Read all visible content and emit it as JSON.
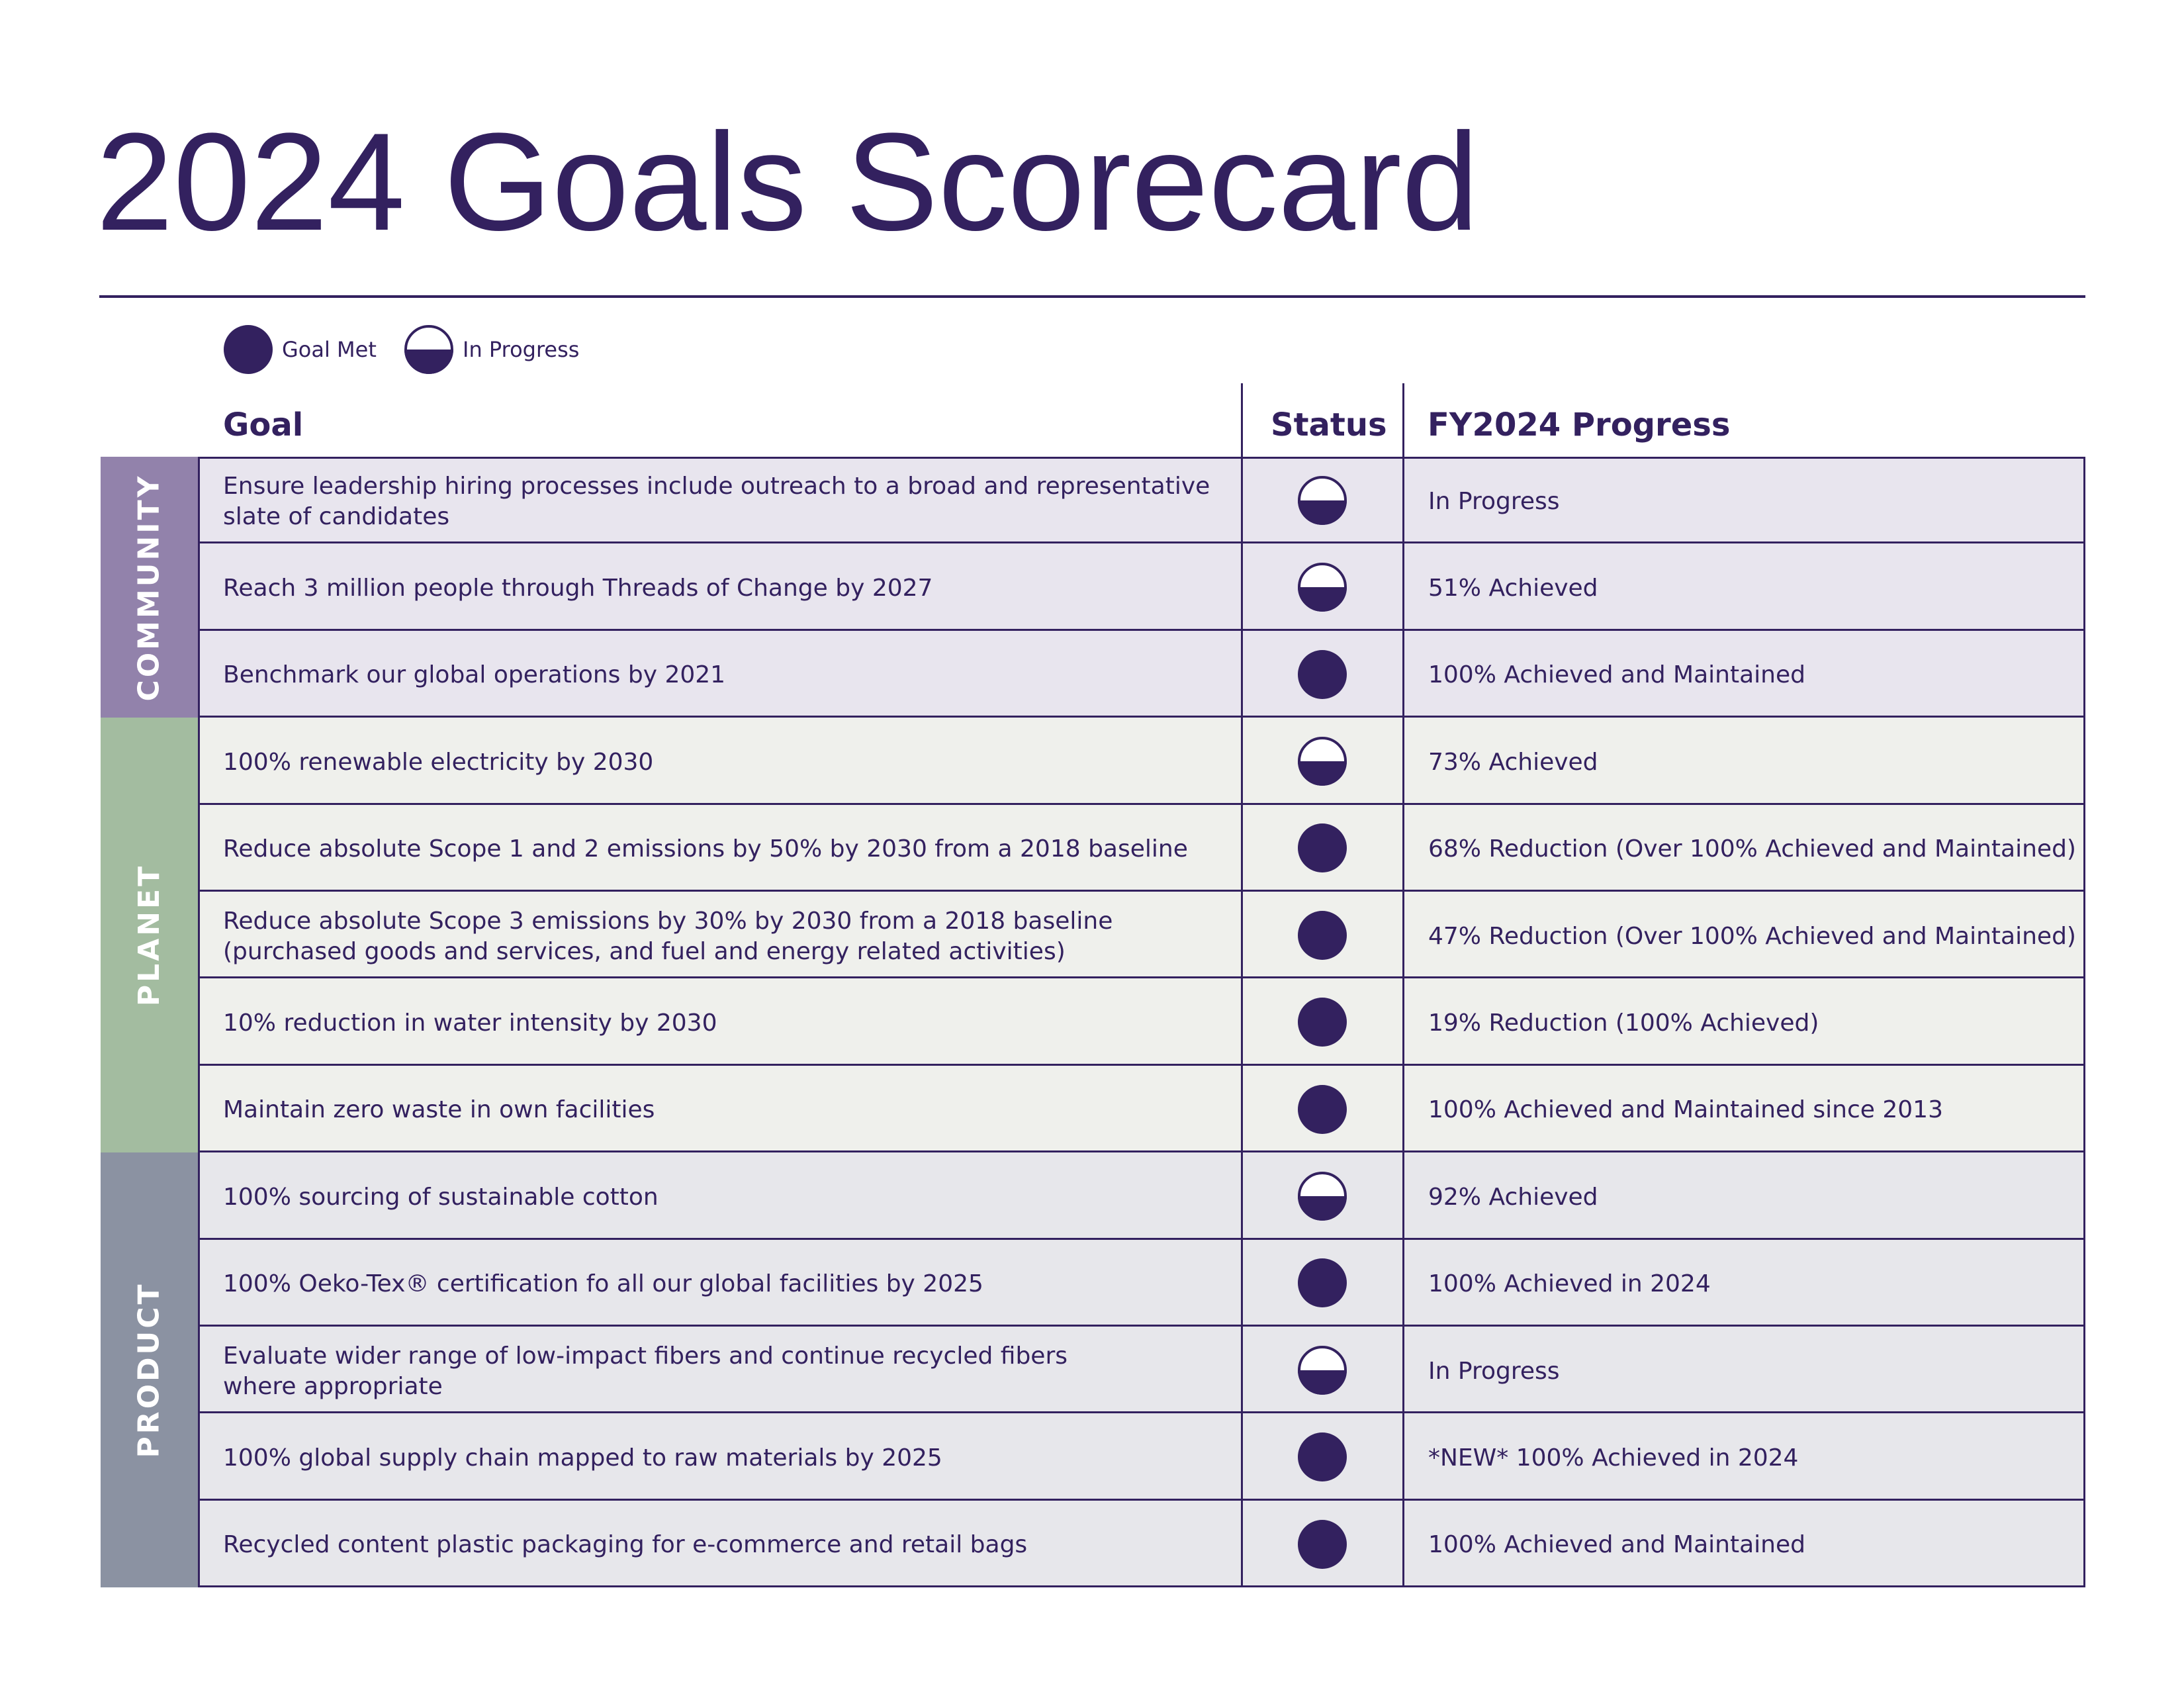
{
  "title": "2024 Goals Scorecard",
  "legend": [
    {
      "label": "Goal Met",
      "icon": "full"
    },
    {
      "label": "In Progress",
      "icon": "half"
    }
  ],
  "table": {
    "columns": [
      "Goal",
      "Status",
      "FY2024 Progress"
    ],
    "groups": [
      {
        "name": "COMMUNITY",
        "color": "#9282ab",
        "row_color": "#e8e5ee",
        "rows": [
          {
            "goal": "Ensure leadership hiring processes include outreach to a broad and representative\nslate of candidates",
            "status": "In Progress",
            "progress": "In Progress"
          },
          {
            "goal": "Reach 3 million people through Threads of Change by 2027",
            "status": "In Progress",
            "progress": "51% Achieved"
          },
          {
            "goal": "Benchmark our global operations by 2021",
            "status": "Goal Met",
            "progress": "100% Achieved and Maintained"
          }
        ]
      },
      {
        "name": "PLANET",
        "color": "#a3bca0",
        "row_color": "#eff0ec",
        "rows": [
          {
            "goal": "100% renewable electricity by 2030",
            "status": "In Progress",
            "progress": "73% Achieved"
          },
          {
            "goal": "Reduce absolute Scope 1 and 2 emissions by 50% by 2030 from a 2018 baseline",
            "status": "Goal Met",
            "progress": "68% Reduction (Over 100% Achieved and Maintained)"
          },
          {
            "goal": "Reduce absolute Scope 3 emissions by 30% by 2030 from a 2018 baseline\n(purchased goods and services, and fuel and energy related activities)",
            "status": "Goal Met",
            "progress": "47% Reduction (Over 100% Achieved and Maintained)"
          },
          {
            "goal": "10% reduction in water intensity by 2030",
            "status": "Goal Met",
            "progress": "19% Reduction (100% Achieved)"
          },
          {
            "goal": "Maintain zero waste in own facilities",
            "status": "Goal Met",
            "progress": "100% Achieved and Maintained since 2013"
          }
        ]
      },
      {
        "name": "PRODUCT",
        "color": "#8b92a2",
        "row_color": "#e7e7eb",
        "rows": [
          {
            "goal": "100% sourcing of sustainable cotton",
            "status": "In Progress",
            "progress": "92% Achieved"
          },
          {
            "goal": "100% Oeko-Tex® certification fo all our global facilities by 2025",
            "status": "Goal Met",
            "progress": "100% Achieved in 2024"
          },
          {
            "goal": "Evaluate wider range of low-impact fibers and continue recycled fibers\nwhere appropriate",
            "status": "In Progress",
            "progress": "In Progress"
          },
          {
            "goal": "100% global supply chain mapped to raw materials by 2025",
            "status": "Goal Met",
            "progress": "*NEW* 100% Achieved in 2024"
          },
          {
            "goal": "Recycled content plastic packaging for e-commerce and retail bags",
            "status": "Goal Met",
            "progress": "100% Achieved and Maintained"
          }
        ]
      }
    ]
  }
}
